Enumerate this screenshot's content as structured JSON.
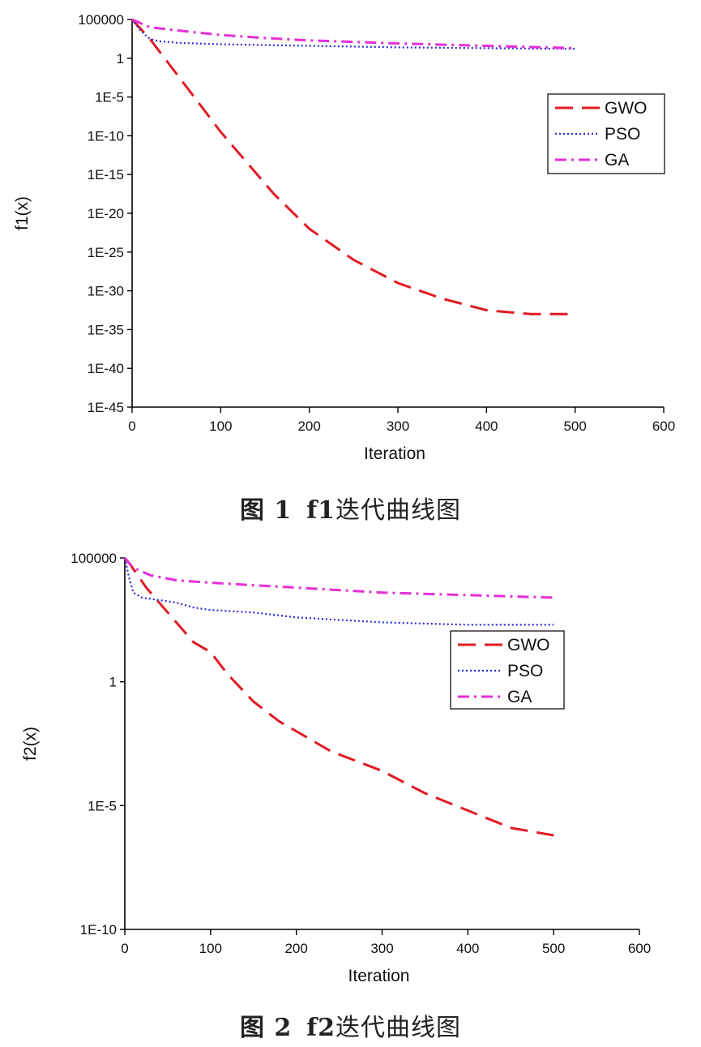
{
  "chart_data": [
    {
      "type": "line",
      "title": "",
      "xlabel": "Iteration",
      "ylabel": "f1(x)",
      "xlim": [
        0,
        600
      ],
      "xticks": [
        0,
        100,
        200,
        300,
        400,
        500,
        600
      ],
      "yscale": "log",
      "ylim_exp": [
        -45,
        5
      ],
      "yticks": [
        {
          "exp": 5,
          "label": "100000"
        },
        {
          "exp": 0,
          "label": "1"
        },
        {
          "exp": -5,
          "label": "1E-5"
        },
        {
          "exp": -10,
          "label": "1E-10"
        },
        {
          "exp": -15,
          "label": "1E-15"
        },
        {
          "exp": -20,
          "label": "1E-20"
        },
        {
          "exp": -25,
          "label": "1E-25"
        },
        {
          "exp": -30,
          "label": "1E-30"
        },
        {
          "exp": -35,
          "label": "1E-35"
        },
        {
          "exp": -40,
          "label": "1E-40"
        },
        {
          "exp": -45,
          "label": "1E-45"
        }
      ],
      "legend_position": "upper-right",
      "grid": false,
      "series": [
        {
          "name": "GWO",
          "color": "#e01b24",
          "dash": "long-dash",
          "x": [
            0,
            20,
            50,
            80,
            100,
            130,
            160,
            200,
            250,
            300,
            350,
            400,
            450,
            500
          ],
          "y_exp": [
            5,
            2.5,
            -2,
            -6.5,
            -9.5,
            -13.5,
            -17.5,
            -22,
            -26,
            -29,
            -31,
            -32.5,
            -33,
            -33
          ]
        },
        {
          "name": "PSO",
          "color": "#2b2bd8",
          "dash": "dotted",
          "x": [
            0,
            10,
            20,
            30,
            50,
            100,
            200,
            300,
            400,
            500
          ],
          "y_exp": [
            5,
            3.5,
            2.5,
            2.2,
            2.0,
            1.8,
            1.6,
            1.4,
            1.3,
            1.2
          ]
        },
        {
          "name": "GA",
          "color": "#e52fd6",
          "dash": "dash-dot",
          "x": [
            0,
            20,
            50,
            100,
            150,
            200,
            300,
            400,
            500
          ],
          "y_exp": [
            5,
            4.0,
            3.6,
            3.0,
            2.6,
            2.3,
            1.9,
            1.6,
            1.3
          ]
        }
      ]
    },
    {
      "type": "line",
      "title": "",
      "xlabel": "Iteration",
      "ylabel": "f2(x)",
      "xlim": [
        0,
        600
      ],
      "xticks": [
        0,
        100,
        200,
        300,
        400,
        500,
        600
      ],
      "yscale": "log",
      "ylim_exp": [
        -10,
        5
      ],
      "yticks": [
        {
          "exp": 5,
          "label": "100000"
        },
        {
          "exp": 0,
          "label": "1"
        },
        {
          "exp": -5,
          "label": "1E-5"
        },
        {
          "exp": -10,
          "label": "1E-10"
        }
      ],
      "legend_position": "upper-right",
      "grid": false,
      "series": [
        {
          "name": "GWO",
          "color": "#e01b24",
          "dash": "long-dash",
          "x": [
            0,
            5,
            25,
            50,
            80,
            100,
            120,
            150,
            180,
            200,
            240,
            300,
            350,
            400,
            450,
            500
          ],
          "y_exp": [
            5,
            4.8,
            3.8,
            2.8,
            1.6,
            1.2,
            0.3,
            -0.8,
            -1.6,
            -2.0,
            -2.8,
            -3.6,
            -4.5,
            -5.2,
            -5.9,
            -6.2
          ]
        },
        {
          "name": "PSO",
          "color": "#2b2bd8",
          "dash": "dotted",
          "x": [
            0,
            5,
            10,
            20,
            40,
            60,
            80,
            100,
            150,
            200,
            300,
            400,
            500
          ],
          "y_exp": [
            5,
            4.2,
            3.6,
            3.4,
            3.3,
            3.2,
            3.0,
            2.9,
            2.8,
            2.6,
            2.4,
            2.3,
            2.3
          ]
        },
        {
          "name": "GA",
          "color": "#e52fd6",
          "dash": "dash-dot",
          "x": [
            0,
            10,
            30,
            60,
            100,
            150,
            200,
            300,
            400,
            500
          ],
          "y_exp": [
            5,
            4.6,
            4.3,
            4.1,
            4.0,
            3.9,
            3.8,
            3.6,
            3.5,
            3.4
          ]
        }
      ]
    }
  ],
  "captions": [
    {
      "num": "图 1",
      "fname": "f1",
      "text": "迭代曲线图"
    },
    {
      "num": "图 2",
      "fname": "f2",
      "text": "迭代曲线图"
    }
  ]
}
